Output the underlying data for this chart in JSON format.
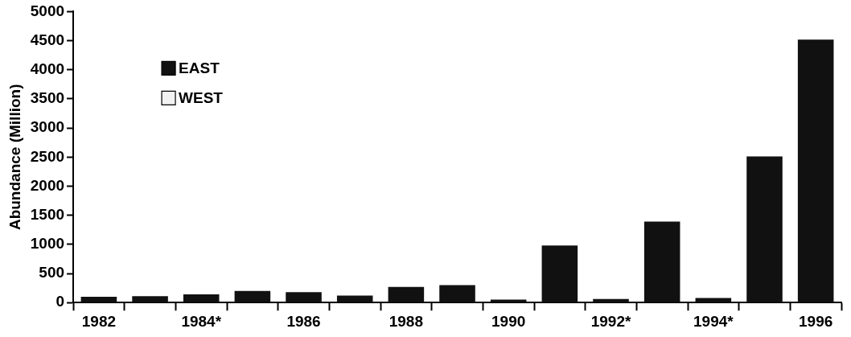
{
  "chart_data": {
    "type": "bar",
    "ylabel": "Abundance (Million)",
    "categories": [
      "1982",
      null,
      "1984*",
      null,
      "1986",
      null,
      "1988",
      null,
      "1990",
      null,
      "1992*",
      null,
      "1994*",
      null,
      "1996"
    ],
    "series": [
      {
        "name": "EAST",
        "color": "#111111",
        "values": [
          100,
          110,
          140,
          200,
          180,
          120,
          270,
          300,
          50,
          980,
          60,
          1390,
          80,
          2510,
          4520
        ]
      },
      {
        "name": "WEST",
        "color": "#f2f2f2",
        "values": [
          null,
          null,
          null,
          null,
          null,
          null,
          null,
          null,
          null,
          null,
          null,
          null,
          null,
          null,
          null
        ]
      }
    ],
    "stacked": true,
    "ylim": [
      0,
      5000
    ],
    "yticks": [
      0,
      500,
      1000,
      1500,
      2000,
      2500,
      3000,
      3500,
      4000,
      4500,
      5000
    ],
    "grid": false,
    "legend": "top left"
  }
}
